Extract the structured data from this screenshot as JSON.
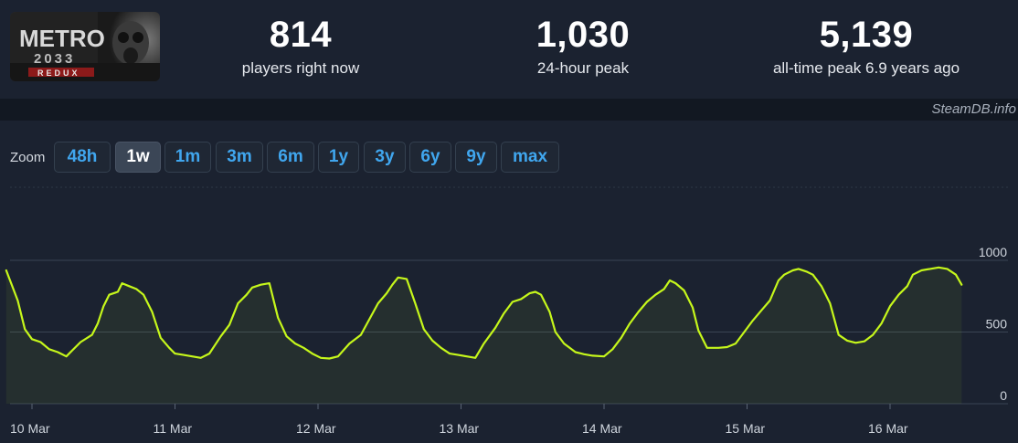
{
  "game": {
    "logo_title": "METRO",
    "logo_subtitle": "2033",
    "logo_badge": "REDUX"
  },
  "stats": [
    {
      "value": "814",
      "label": "players right now"
    },
    {
      "value": "1,030",
      "label": "24-hour peak"
    },
    {
      "value": "5,139",
      "label": "all-time peak 6.9 years ago"
    }
  ],
  "credit": "SteamDB.info",
  "zoom": {
    "label": "Zoom",
    "options": [
      "48h",
      "1w",
      "1m",
      "3m",
      "6m",
      "1y",
      "3y",
      "6y",
      "9y",
      "max"
    ],
    "active": "1w"
  },
  "colors": {
    "line": "#c6f71b",
    "grid": "#3a4453",
    "accent": "#40a6ee",
    "background": "#1b2230"
  },
  "chart_data": {
    "type": "line",
    "title": "",
    "xlabel": "",
    "ylabel": "",
    "grid": true,
    "ylim": [
      0,
      1000
    ],
    "yticks": [
      0,
      500,
      1000
    ],
    "xlim": [
      "2024-03-10",
      "2024-03-16 20:00"
    ],
    "xticks": [
      "10 Mar",
      "11 Mar",
      "12 Mar",
      "13 Mar",
      "14 Mar",
      "15 Mar",
      "16 Mar"
    ],
    "series": [
      {
        "values": [
          [
            -0.18,
            930
          ],
          [
            -0.1,
            720
          ],
          [
            -0.05,
            520
          ],
          [
            0.0,
            450
          ],
          [
            0.06,
            430
          ],
          [
            0.12,
            380
          ],
          [
            0.18,
            360
          ],
          [
            0.24,
            330
          ],
          [
            0.28,
            370
          ],
          [
            0.34,
            430
          ],
          [
            0.42,
            480
          ],
          [
            0.46,
            560
          ],
          [
            0.5,
            680
          ],
          [
            0.54,
            760
          ],
          [
            0.6,
            780
          ],
          [
            0.63,
            840
          ],
          [
            0.68,
            820
          ],
          [
            0.73,
            800
          ],
          [
            0.78,
            760
          ],
          [
            0.84,
            640
          ],
          [
            0.9,
            460
          ],
          [
            0.96,
            390
          ],
          [
            1.0,
            350
          ],
          [
            1.06,
            340
          ],
          [
            1.12,
            330
          ],
          [
            1.18,
            320
          ],
          [
            1.24,
            350
          ],
          [
            1.32,
            470
          ],
          [
            1.38,
            550
          ],
          [
            1.44,
            700
          ],
          [
            1.5,
            760
          ],
          [
            1.54,
            810
          ],
          [
            1.6,
            830
          ],
          [
            1.66,
            840
          ],
          [
            1.72,
            600
          ],
          [
            1.78,
            470
          ],
          [
            1.84,
            420
          ],
          [
            1.9,
            390
          ],
          [
            1.96,
            350
          ],
          [
            2.02,
            320
          ],
          [
            2.08,
            315
          ],
          [
            2.14,
            330
          ],
          [
            2.22,
            420
          ],
          [
            2.3,
            480
          ],
          [
            2.36,
            590
          ],
          [
            2.42,
            700
          ],
          [
            2.48,
            770
          ],
          [
            2.52,
            830
          ],
          [
            2.56,
            880
          ],
          [
            2.62,
            870
          ],
          [
            2.68,
            700
          ],
          [
            2.74,
            520
          ],
          [
            2.8,
            440
          ],
          [
            2.86,
            390
          ],
          [
            2.92,
            350
          ],
          [
            2.98,
            340
          ],
          [
            3.04,
            330
          ],
          [
            3.1,
            320
          ],
          [
            3.16,
            420
          ],
          [
            3.24,
            530
          ],
          [
            3.3,
            630
          ],
          [
            3.36,
            710
          ],
          [
            3.42,
            730
          ],
          [
            3.48,
            770
          ],
          [
            3.52,
            780
          ],
          [
            3.56,
            760
          ],
          [
            3.62,
            640
          ],
          [
            3.66,
            500
          ],
          [
            3.72,
            420
          ],
          [
            3.8,
            360
          ],
          [
            3.86,
            345
          ],
          [
            3.92,
            335
          ],
          [
            4.0,
            330
          ],
          [
            4.06,
            380
          ],
          [
            4.12,
            460
          ],
          [
            4.18,
            560
          ],
          [
            4.24,
            640
          ],
          [
            4.3,
            710
          ],
          [
            4.36,
            760
          ],
          [
            4.42,
            800
          ],
          [
            4.46,
            860
          ],
          [
            4.5,
            840
          ],
          [
            4.56,
            790
          ],
          [
            4.62,
            670
          ],
          [
            4.66,
            510
          ],
          [
            4.72,
            390
          ],
          [
            4.8,
            390
          ],
          [
            4.86,
            395
          ],
          [
            4.92,
            420
          ],
          [
            4.98,
            500
          ],
          [
            5.04,
            580
          ],
          [
            5.1,
            650
          ],
          [
            5.16,
            720
          ],
          [
            5.22,
            860
          ],
          [
            5.26,
            900
          ],
          [
            5.32,
            930
          ],
          [
            5.36,
            940
          ],
          [
            5.42,
            920
          ],
          [
            5.46,
            900
          ],
          [
            5.52,
            820
          ],
          [
            5.58,
            700
          ],
          [
            5.64,
            480
          ],
          [
            5.7,
            440
          ],
          [
            5.76,
            425
          ],
          [
            5.82,
            435
          ],
          [
            5.88,
            480
          ],
          [
            5.94,
            560
          ],
          [
            6.0,
            680
          ],
          [
            6.06,
            760
          ],
          [
            6.12,
            820
          ],
          [
            6.16,
            900
          ],
          [
            6.22,
            930
          ],
          [
            6.28,
            940
          ],
          [
            6.34,
            950
          ],
          [
            6.4,
            940
          ],
          [
            6.46,
            900
          ],
          [
            6.5,
            830
          ]
        ]
      }
    ]
  }
}
